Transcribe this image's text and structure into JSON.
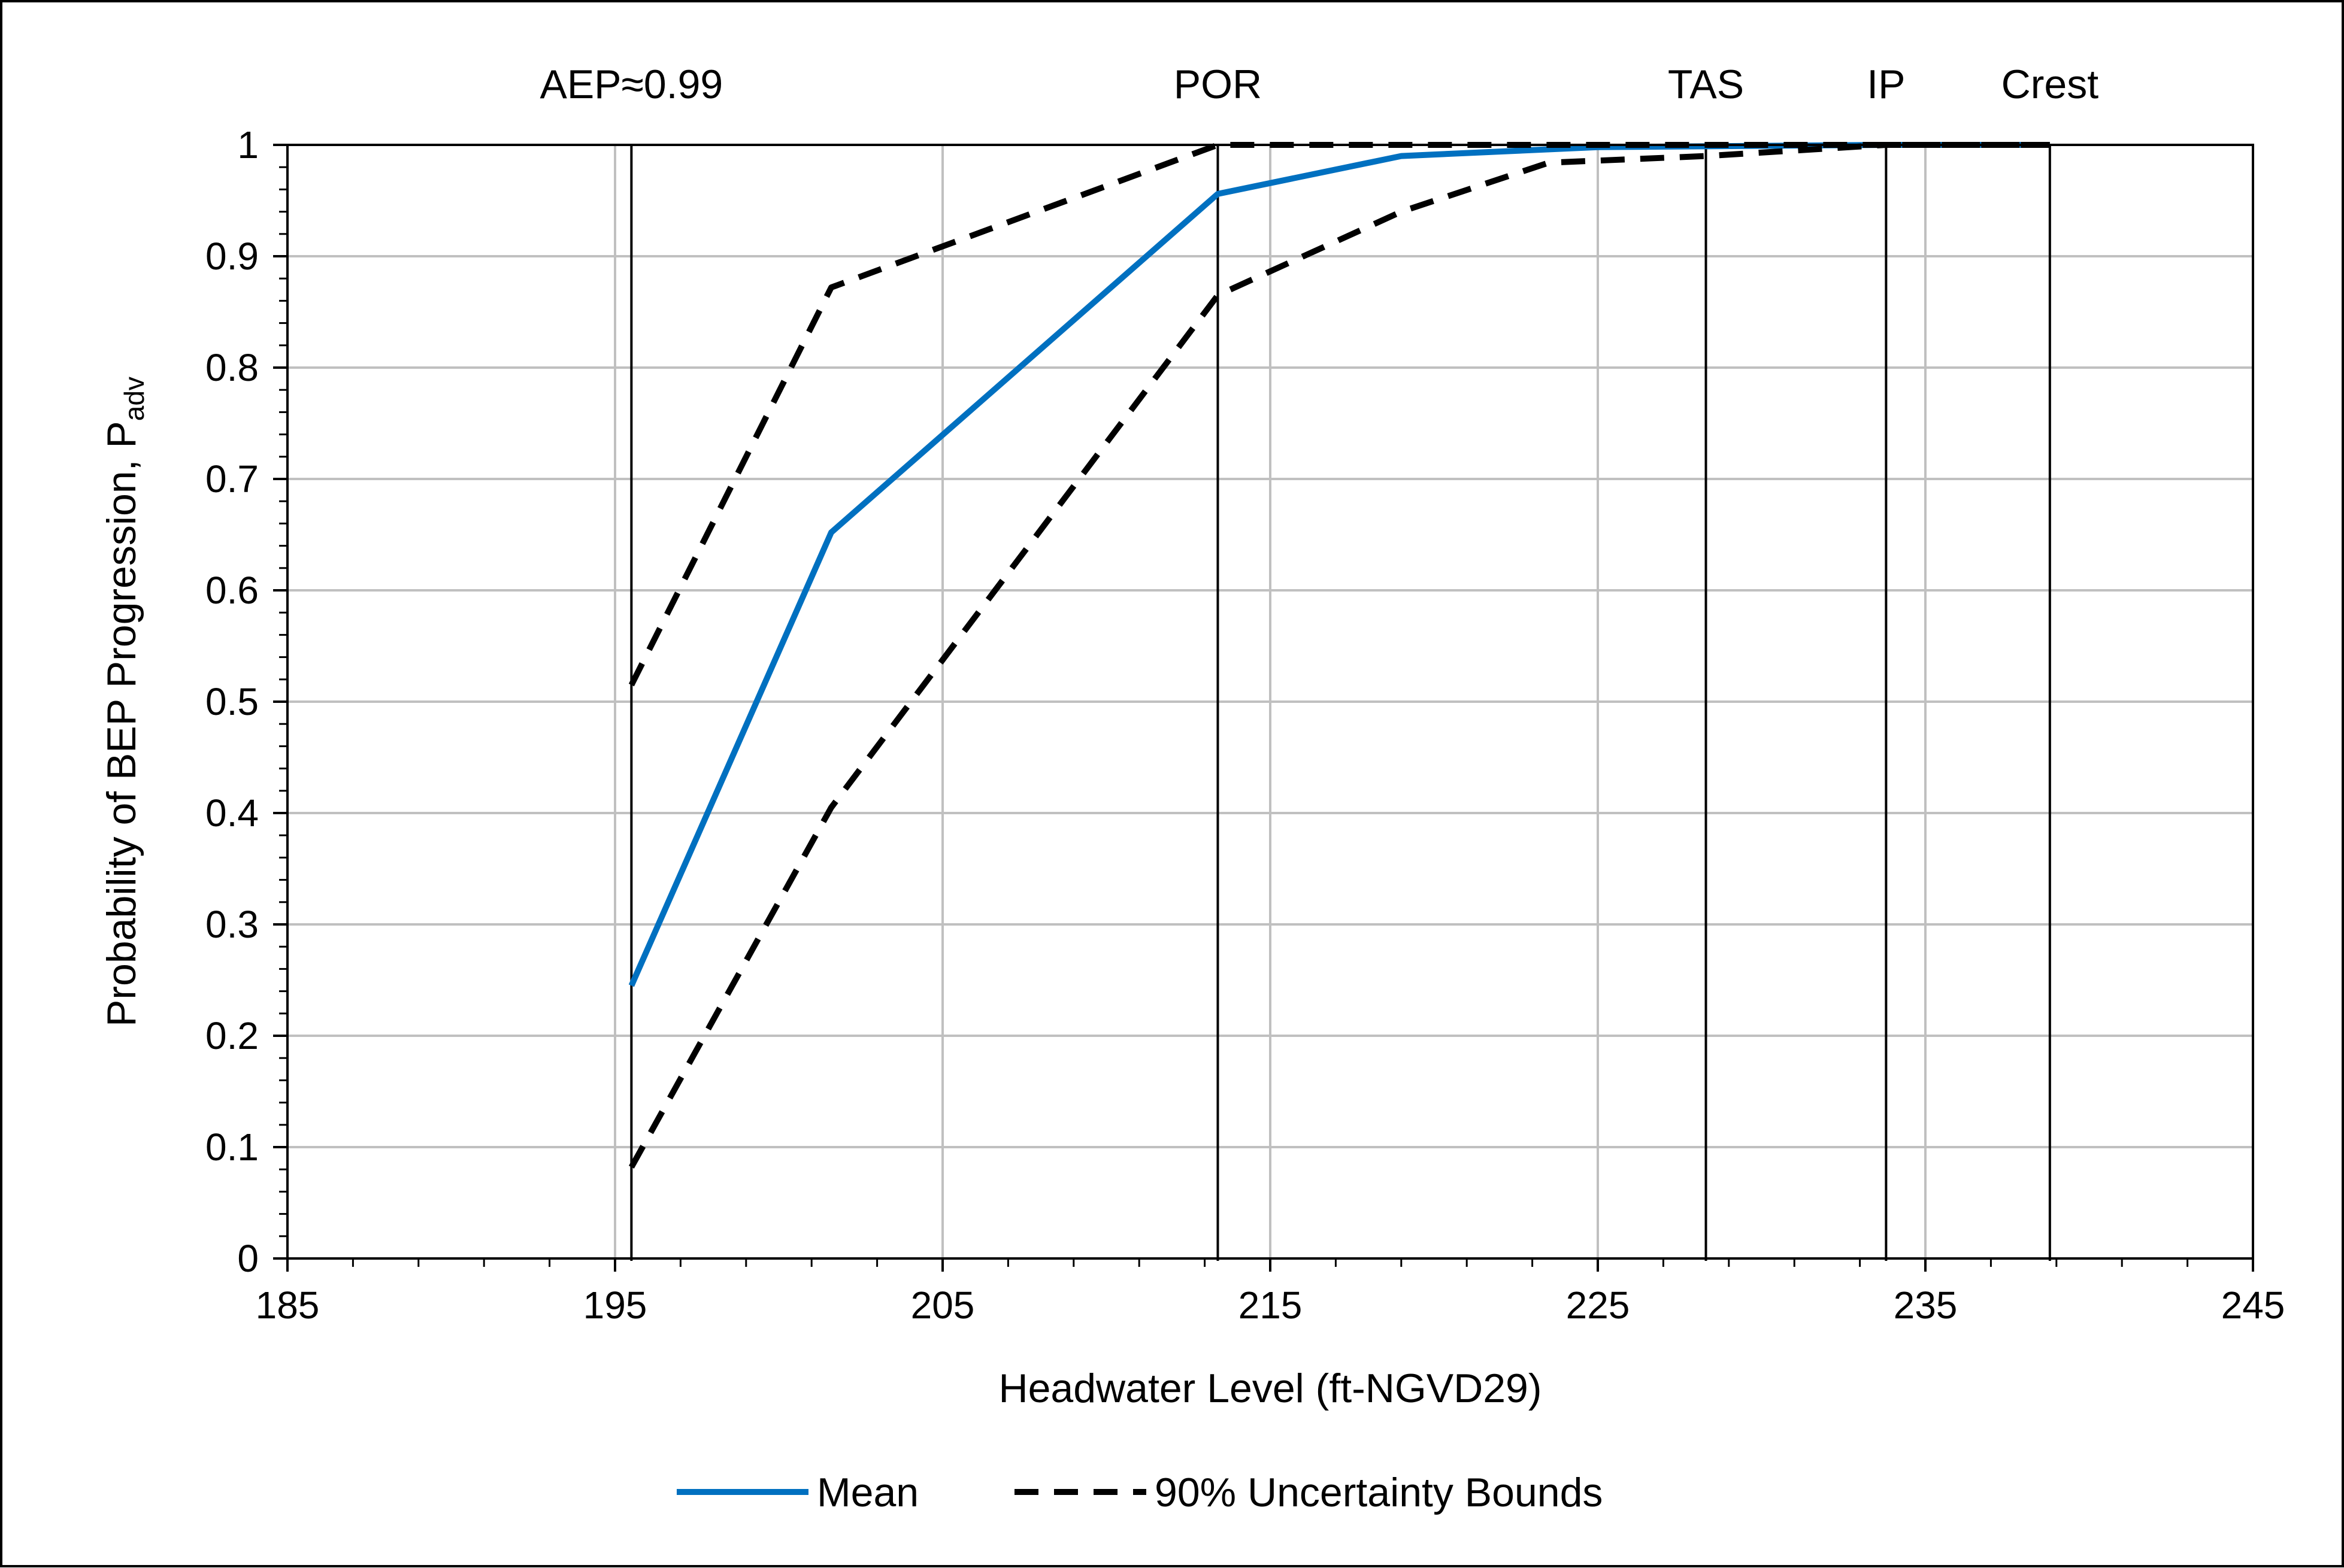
{
  "chart_data": {
    "type": "line",
    "xlabel": "Headwater Level (ft-NGVD29)",
    "ylabel": {
      "main": "Probability of BEP Progression, P",
      "subscript": "adv"
    },
    "xlim": [
      185,
      245
    ],
    "ylim": [
      0,
      1
    ],
    "x_ticks": [
      "185",
      "195",
      "205",
      "215",
      "225",
      "235",
      "245"
    ],
    "y_ticks": [
      "0",
      "0.1",
      "0.2",
      "0.3",
      "0.4",
      "0.5",
      "0.6",
      "0.7",
      "0.8",
      "0.9",
      "1"
    ],
    "grid": true,
    "legend_position": "bottom",
    "reference_lines": [
      {
        "label": "AEP≈0.99",
        "x": 195.5
      },
      {
        "label": "POR",
        "x": 213.4
      },
      {
        "label": "TAS",
        "x": 228.3
      },
      {
        "label": "IP",
        "x": 233.8
      },
      {
        "label": "Crest",
        "x": 238.8
      }
    ],
    "series": [
      {
        "name": "Mean",
        "color": "#0070c0",
        "style": "solid",
        "x": [
          195.5,
          201.6,
          213.4,
          219.0,
          225.0,
          233.8,
          238.8
        ],
        "y": [
          0.245,
          0.652,
          0.956,
          0.99,
          0.998,
          1.0,
          1.0
        ]
      },
      {
        "name": "90% Uncertainty Bounds",
        "color": "#000000",
        "style": "dashed",
        "x": [
          195.5,
          201.6,
          213.4,
          219.0,
          225.0,
          233.8,
          238.8
        ],
        "y": [
          0.515,
          0.872,
          1.0,
          1.0,
          1.0,
          1.0,
          1.0
        ]
      },
      {
        "name": "90% Uncertainty Bounds",
        "legend": false,
        "color": "#000000",
        "style": "dashed",
        "x": [
          195.5,
          201.6,
          213.4,
          219.0,
          223.5,
          228.3,
          233.8,
          238.8
        ],
        "y": [
          0.082,
          0.405,
          0.865,
          0.94,
          0.984,
          0.99,
          1.0,
          1.0
        ]
      }
    ]
  }
}
